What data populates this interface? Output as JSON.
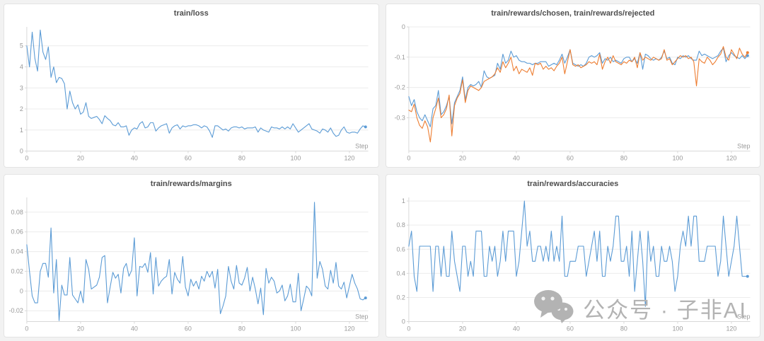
{
  "page": {
    "background": "#f2f2f2",
    "panel_bg": "#ffffff",
    "panel_border": "#e4e4e4",
    "grid_color": "#ececec",
    "axis_color": "#d9d9d9",
    "tick_text_color": "#999999",
    "title_color": "#4d4d4d"
  },
  "watermark": {
    "text": "公众号 · 子非AI",
    "icon": "wechat-icon",
    "color": "#b3b3b3"
  },
  "chart_data": [
    {
      "type": "line",
      "title": "train/loss",
      "xlabel": "Step",
      "x_start": 0,
      "x_step": 1,
      "xlim": [
        0,
        127
      ],
      "ylim": [
        0,
        5.9
      ],
      "x_ticks": [
        0,
        20,
        40,
        60,
        80,
        100,
        120
      ],
      "y_ticks": [
        0,
        1,
        2,
        3,
        4,
        5
      ],
      "grid": true,
      "legend": "none",
      "series": [
        {
          "name": "train/loss",
          "color": "#5b9bd5",
          "values": [
            5.0,
            4.0,
            5.65,
            4.4,
            3.8,
            5.75,
            4.7,
            4.35,
            4.95,
            3.5,
            4.0,
            3.25,
            3.5,
            3.45,
            3.2,
            2.0,
            2.85,
            2.3,
            2.0,
            2.2,
            1.75,
            1.85,
            2.3,
            1.65,
            1.55,
            1.6,
            1.65,
            1.5,
            1.3,
            1.68,
            1.55,
            1.45,
            1.25,
            1.2,
            1.35,
            1.15,
            1.15,
            1.2,
            0.75,
            1.0,
            1.1,
            1.05,
            1.3,
            1.4,
            1.1,
            1.15,
            1.35,
            1.35,
            0.95,
            1.1,
            1.2,
            1.25,
            1.3,
            0.85,
            1.1,
            1.2,
            1.25,
            1.05,
            1.2,
            1.15,
            1.2,
            1.2,
            1.25,
            1.25,
            1.2,
            1.1,
            1.2,
            1.15,
            0.95,
            0.65,
            1.2,
            1.2,
            1.1,
            1.0,
            1.05,
            0.95,
            1.1,
            1.15,
            1.15,
            1.1,
            1.15,
            1.05,
            1.1,
            1.1,
            1.1,
            1.15,
            0.9,
            1.1,
            1.0,
            0.95,
            0.9,
            1.15,
            1.1,
            1.1,
            1.05,
            1.15,
            1.05,
            1.15,
            1.05,
            1.3,
            1.1,
            0.9,
            1.0,
            1.1,
            1.2,
            1.3,
            1.05,
            1.0,
            0.95,
            0.85,
            1.05,
            1.0,
            0.9,
            1.1,
            0.85,
            0.7,
            0.75,
            1.0,
            1.15,
            0.9,
            0.85,
            0.9,
            0.9,
            0.85,
            1.05,
            1.2,
            1.15
          ]
        }
      ]
    },
    {
      "type": "line",
      "title": "train/rewards/chosen, train/rewards/rejected",
      "xlabel": "Step",
      "x_start": 0,
      "x_step": 1,
      "xlim": [
        0,
        127
      ],
      "ylim": [
        -0.41,
        0
      ],
      "x_ticks": [
        0,
        20,
        40,
        60,
        80,
        100,
        120
      ],
      "y_ticks": [
        0,
        -0.1,
        -0.2,
        -0.3
      ],
      "grid": true,
      "legend": "none",
      "series": [
        {
          "name": "train/rewards/chosen",
          "color": "#5b9bd5",
          "values": [
            -0.23,
            -0.26,
            -0.24,
            -0.28,
            -0.3,
            -0.31,
            -0.29,
            -0.31,
            -0.33,
            -0.27,
            -0.26,
            -0.21,
            -0.29,
            -0.28,
            -0.26,
            -0.23,
            -0.32,
            -0.25,
            -0.23,
            -0.21,
            -0.165,
            -0.24,
            -0.2,
            -0.19,
            -0.195,
            -0.19,
            -0.18,
            -0.2,
            -0.145,
            -0.165,
            -0.17,
            -0.165,
            -0.16,
            -0.12,
            -0.14,
            -0.09,
            -0.12,
            -0.11,
            -0.08,
            -0.1,
            -0.095,
            -0.11,
            -0.115,
            -0.115,
            -0.12,
            -0.12,
            -0.125,
            -0.12,
            -0.12,
            -0.115,
            -0.115,
            -0.115,
            -0.13,
            -0.125,
            -0.12,
            -0.125,
            -0.11,
            -0.09,
            -0.12,
            -0.1,
            -0.075,
            -0.12,
            -0.125,
            -0.13,
            -0.125,
            -0.13,
            -0.12,
            -0.1,
            -0.095,
            -0.1,
            -0.095,
            -0.085,
            -0.12,
            -0.105,
            -0.11,
            -0.1,
            -0.115,
            -0.11,
            -0.115,
            -0.12,
            -0.105,
            -0.1,
            -0.1,
            -0.115,
            -0.105,
            -0.12,
            -0.085,
            -0.14,
            -0.09,
            -0.095,
            -0.105,
            -0.11,
            -0.105,
            -0.11,
            -0.1,
            -0.08,
            -0.105,
            -0.1,
            -0.12,
            -0.125,
            -0.1,
            -0.105,
            -0.095,
            -0.1,
            -0.095,
            -0.105,
            -0.11,
            -0.11,
            -0.08,
            -0.095,
            -0.09,
            -0.095,
            -0.1,
            -0.105,
            -0.1,
            -0.095,
            -0.08,
            -0.07,
            -0.115,
            -0.095,
            -0.085,
            -0.095,
            -0.1,
            -0.105,
            -0.095,
            -0.105,
            -0.095
          ]
        },
        {
          "name": "train/rewards/rejected",
          "color": "#ed7d31",
          "values": [
            -0.275,
            -0.28,
            -0.255,
            -0.3,
            -0.325,
            -0.335,
            -0.31,
            -0.33,
            -0.38,
            -0.3,
            -0.27,
            -0.235,
            -0.3,
            -0.29,
            -0.27,
            -0.225,
            -0.36,
            -0.26,
            -0.235,
            -0.22,
            -0.175,
            -0.25,
            -0.21,
            -0.195,
            -0.2,
            -0.205,
            -0.21,
            -0.2,
            -0.18,
            -0.175,
            -0.17,
            -0.165,
            -0.155,
            -0.135,
            -0.15,
            -0.115,
            -0.135,
            -0.12,
            -0.1,
            -0.145,
            -0.13,
            -0.155,
            -0.14,
            -0.145,
            -0.15,
            -0.135,
            -0.16,
            -0.12,
            -0.125,
            -0.12,
            -0.14,
            -0.13,
            -0.14,
            -0.135,
            -0.145,
            -0.13,
            -0.12,
            -0.1,
            -0.155,
            -0.115,
            -0.075,
            -0.125,
            -0.13,
            -0.125,
            -0.135,
            -0.13,
            -0.125,
            -0.115,
            -0.12,
            -0.115,
            -0.125,
            -0.09,
            -0.14,
            -0.115,
            -0.1,
            -0.12,
            -0.095,
            -0.115,
            -0.12,
            -0.125,
            -0.115,
            -0.12,
            -0.11,
            -0.115,
            -0.1,
            -0.135,
            -0.085,
            -0.11,
            -0.1,
            -0.105,
            -0.11,
            -0.1,
            -0.105,
            -0.11,
            -0.105,
            -0.075,
            -0.11,
            -0.105,
            -0.125,
            -0.115,
            -0.105,
            -0.095,
            -0.1,
            -0.095,
            -0.105,
            -0.1,
            -0.115,
            -0.195,
            -0.105,
            -0.115,
            -0.12,
            -0.1,
            -0.11,
            -0.125,
            -0.115,
            -0.1,
            -0.09,
            -0.065,
            -0.1,
            -0.11,
            -0.075,
            -0.09,
            -0.105,
            -0.07,
            -0.09,
            -0.1,
            -0.085
          ]
        }
      ]
    },
    {
      "type": "line",
      "title": "train/rewards/margins",
      "xlabel": "Step",
      "x_start": 0,
      "x_step": 1,
      "xlim": [
        0,
        127
      ],
      "ylim": [
        -0.031,
        0.095
      ],
      "x_ticks": [
        0,
        20,
        40,
        60,
        80,
        100,
        120
      ],
      "y_ticks": [
        -0.02,
        0,
        0.02,
        0.04,
        0.06,
        0.08
      ],
      "grid": true,
      "legend": "none",
      "series": [
        {
          "name": "train/rewards/margins",
          "color": "#5b9bd5",
          "values": [
            0.047,
            0.02,
            -0.005,
            -0.012,
            -0.012,
            0.02,
            0.028,
            0.028,
            0.014,
            0.064,
            -0.002,
            0.032,
            -0.03,
            0.006,
            -0.004,
            -0.004,
            0.034,
            -0.004,
            -0.008,
            -0.012,
            0.0,
            -0.012,
            0.032,
            0.022,
            0.002,
            0.004,
            0.006,
            0.014,
            0.034,
            0.036,
            -0.012,
            0.004,
            0.019,
            0.013,
            0.017,
            -0.002,
            0.023,
            0.028,
            0.015,
            0.021,
            0.054,
            -0.005,
            0.025,
            0.024,
            0.028,
            0.019,
            0.039,
            -0.003,
            0.034,
            0.005,
            0.01,
            0.013,
            0.015,
            0.032,
            -0.003,
            0.019,
            0.012,
            0.008,
            0.035,
            0.004,
            -0.005,
            0.012,
            0.005,
            0.01,
            0.002,
            0.015,
            0.01,
            0.02,
            0.014,
            0.02,
            0.003,
            0.022,
            -0.023,
            -0.015,
            -0.005,
            0.025,
            0.01,
            0.002,
            0.026,
            0.008,
            0.006,
            0.013,
            0.024,
            0.0,
            0.014,
            0.002,
            -0.013,
            0.003,
            -0.024,
            0.023,
            0.008,
            0.014,
            0.01,
            -0.002,
            0.0,
            0.006,
            -0.01,
            -0.005,
            0.007,
            -0.011,
            -0.011,
            0.018,
            -0.02,
            -0.008,
            0.005,
            0.002,
            -0.005,
            0.09,
            0.013,
            0.03,
            0.022,
            0.005,
            0.002,
            0.021,
            0.008,
            0.029,
            0.005,
            0.002,
            0.009,
            -0.007,
            0.005,
            0.017,
            0.008,
            0.002,
            -0.008,
            -0.009,
            -0.007
          ]
        }
      ]
    },
    {
      "type": "line",
      "title": "train/rewards/accuracies",
      "xlabel": "Step",
      "x_start": 0,
      "x_step": 1,
      "xlim": [
        0,
        127
      ],
      "ylim": [
        0,
        1.03
      ],
      "x_ticks": [
        0,
        20,
        40,
        60,
        80,
        100,
        120
      ],
      "y_ticks": [
        0,
        0.2,
        0.4,
        0.6,
        0.8,
        1
      ],
      "grid": true,
      "legend": "none",
      "series": [
        {
          "name": "train/rewards/accuracies",
          "color": "#5b9bd5",
          "values": [
            0.625,
            0.75,
            0.375,
            0.25,
            0.625,
            0.625,
            0.625,
            0.625,
            0.625,
            0.25,
            0.625,
            0.625,
            0.375,
            0.625,
            0.375,
            0.375,
            0.75,
            0.5,
            0.375,
            0.25,
            0.625,
            0.625,
            0.375,
            0.5,
            0.375,
            0.75,
            0.75,
            0.75,
            0.375,
            0.375,
            0.625,
            0.5,
            0.625,
            0.375,
            0.5,
            0.75,
            0.5,
            0.75,
            0.75,
            0.75,
            0.375,
            0.5,
            0.75,
            1.0,
            0.625,
            0.75,
            0.5,
            0.5,
            0.625,
            0.625,
            0.5,
            0.625,
            0.5,
            0.75,
            0.5,
            0.625,
            0.5,
            0.875,
            0.375,
            0.375,
            0.5,
            0.5,
            0.5,
            0.625,
            0.625,
            0.625,
            0.375,
            0.5,
            0.625,
            0.75,
            0.5,
            0.75,
            0.375,
            0.375,
            0.625,
            0.5,
            0.625,
            0.875,
            0.875,
            0.5,
            0.5,
            0.625,
            0.375,
            0.75,
            0.25,
            0.5,
            0.75,
            0.5,
            0.125,
            0.75,
            0.5,
            0.625,
            0.375,
            0.375,
            0.625,
            0.5,
            0.5,
            0.625,
            0.5,
            0.25,
            0.375,
            0.625,
            0.75,
            0.625,
            0.875,
            0.625,
            0.875,
            0.875,
            0.5,
            0.5,
            0.5,
            0.625,
            0.625,
            0.625,
            0.625,
            0.375,
            0.5,
            0.875,
            0.625,
            0.375,
            0.5,
            0.625,
            0.875,
            0.625,
            0.375,
            0.375,
            0.375
          ]
        }
      ]
    }
  ]
}
